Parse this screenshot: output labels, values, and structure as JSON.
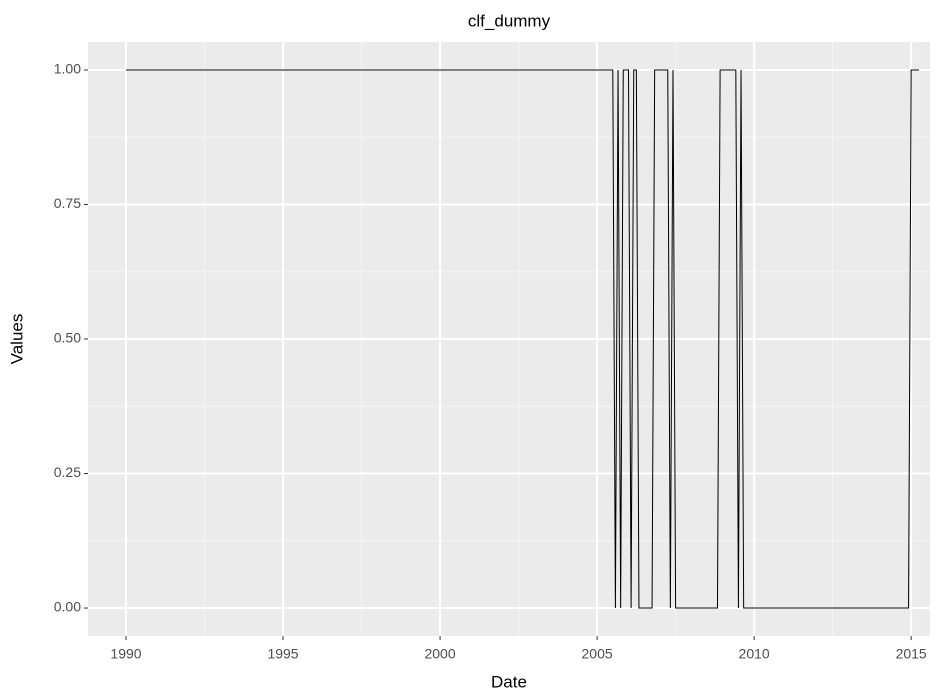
{
  "chart_data": {
    "type": "line",
    "title": "clf_dummy",
    "x_label": "Date",
    "y_label": "Values",
    "x": [
      1990,
      2005.5,
      2005.583,
      2005.667,
      2005.75,
      2005.833,
      2006.0,
      2006.083,
      2006.167,
      2006.25,
      2006.333,
      2006.75,
      2006.833,
      2007.25,
      2007.333,
      2007.417,
      2007.5,
      2008.833,
      2008.917,
      2009.417,
      2009.5,
      2009.583,
      2009.667,
      2014.917,
      2015.0,
      2015.25
    ],
    "series": [
      {
        "name": "clf_dummy",
        "color": "#000000",
        "values": [
          1,
          1,
          0,
          1,
          0,
          1,
          1,
          0,
          1,
          1,
          0,
          0,
          1,
          1,
          0,
          1,
          0,
          0,
          1,
          1,
          0,
          1,
          0,
          0,
          1,
          1
        ]
      }
    ],
    "xlim": [
      1988.79,
      2015.6
    ],
    "xticks": [
      1990,
      1995,
      2000,
      2005,
      2010,
      2015
    ],
    "ylim": [
      -0.052,
      1.052
    ],
    "yticks": [
      {
        "value": 0,
        "label": "0.00"
      },
      {
        "value": 0.25,
        "label": "0.25"
      },
      {
        "value": 0.5,
        "label": "0.50"
      },
      {
        "value": 0.75,
        "label": "0.75"
      },
      {
        "value": 1,
        "label": "1.00"
      }
    ],
    "grid": true
  }
}
